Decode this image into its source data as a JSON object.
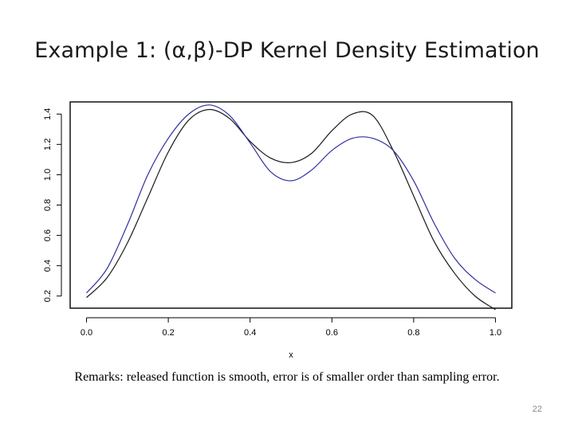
{
  "slide": {
    "title": "Example 1: (α,β)-DP Kernel Density Estimation",
    "remarks": "Remarks: released function is smooth, error is of smaller order than sampling error.",
    "page_number": "22"
  },
  "chart_data": {
    "type": "line",
    "title": "",
    "xlabel": "x",
    "ylabel": "",
    "xlim": [
      -0.04,
      1.04
    ],
    "ylim": [
      0.12,
      1.48
    ],
    "xticks": [
      0.0,
      0.2,
      0.4,
      0.6,
      0.8,
      1.0
    ],
    "xtick_labels": [
      "0.0",
      "0.2",
      "0.4",
      "0.6",
      "0.8",
      "1.0"
    ],
    "yticks": [
      0.2,
      0.4,
      0.6,
      0.8,
      1.0,
      1.2,
      1.4
    ],
    "ytick_labels": [
      "0.2",
      "0.4",
      "0.6",
      "0.8",
      "1.0",
      "1.2",
      "1.4"
    ],
    "grid": false,
    "legend": "none",
    "series": [
      {
        "color": "#1a1a1a",
        "x": [
          0.0,
          0.05,
          0.1,
          0.15,
          0.2,
          0.25,
          0.3,
          0.35,
          0.4,
          0.45,
          0.5,
          0.55,
          0.6,
          0.65,
          0.7,
          0.75,
          0.8,
          0.85,
          0.9,
          0.95,
          1.0
        ],
        "y": [
          0.19,
          0.32,
          0.55,
          0.85,
          1.15,
          1.36,
          1.43,
          1.37,
          1.22,
          1.11,
          1.08,
          1.14,
          1.29,
          1.4,
          1.39,
          1.16,
          0.86,
          0.56,
          0.35,
          0.2,
          0.11
        ]
      },
      {
        "color": "#2f2f9f",
        "x": [
          0.0,
          0.05,
          0.1,
          0.15,
          0.2,
          0.25,
          0.3,
          0.35,
          0.4,
          0.45,
          0.5,
          0.55,
          0.6,
          0.65,
          0.7,
          0.75,
          0.8,
          0.85,
          0.9,
          0.95,
          1.0
        ],
        "y": [
          0.22,
          0.38,
          0.67,
          1.0,
          1.24,
          1.4,
          1.46,
          1.39,
          1.21,
          1.02,
          0.96,
          1.03,
          1.16,
          1.24,
          1.24,
          1.16,
          0.96,
          0.68,
          0.45,
          0.31,
          0.22
        ]
      }
    ]
  }
}
